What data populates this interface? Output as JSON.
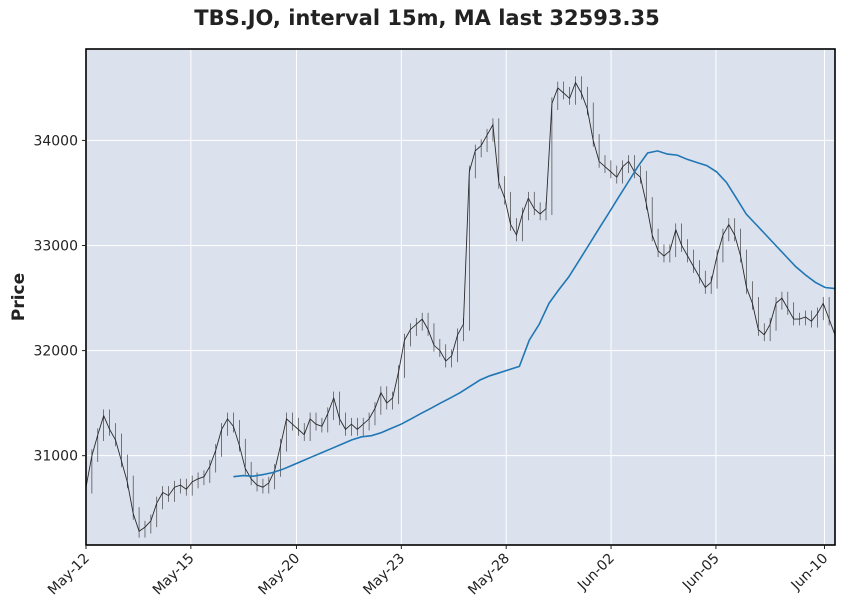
{
  "chart_data": {
    "type": "line",
    "title": "TBS.JO, interval 15m, MA last 32593.35",
    "xlabel": "",
    "ylabel": "Price",
    "x_tick_labels": [
      "May-12",
      "May-15",
      "May-20",
      "May-23",
      "May-28",
      "Jun-02",
      "Jun-05",
      "Jun-10"
    ],
    "y_ticks": [
      31000,
      32000,
      33000,
      34000
    ],
    "ylim": [
      30150,
      34870
    ],
    "grid": true,
    "colors": {
      "background": "#dce1ee",
      "grid": "#ffffff",
      "price": "#2a2a2a",
      "ma": "#1f77b4"
    },
    "series": [
      {
        "key": "price",
        "values": [
          30700,
          31000,
          31200,
          31380,
          31250,
          31150,
          30950,
          30750,
          30450,
          30280,
          30320,
          30380,
          30550,
          30650,
          30620,
          30700,
          30720,
          30680,
          30750,
          30780,
          30800,
          30900,
          31050,
          31250,
          31350,
          31280,
          31100,
          30880,
          30780,
          30720,
          30700,
          30740,
          30860,
          31100,
          31350,
          31300,
          31250,
          31200,
          31350,
          31300,
          31280,
          31400,
          31550,
          31350,
          31250,
          31300,
          31250,
          31300,
          31350,
          31450,
          31600,
          31500,
          31550,
          31800,
          32100,
          32200,
          32250,
          32300,
          32200,
          32050,
          32000,
          31900,
          31950,
          32150,
          32250,
          33700,
          33900,
          33950,
          34050,
          34150,
          33600,
          33450,
          33200,
          33100,
          33300,
          33450,
          33350,
          33300,
          33350,
          34350,
          34500,
          34450,
          34400,
          34550,
          34450,
          34300,
          34000,
          33800,
          33750,
          33700,
          33650,
          33750,
          33800,
          33700,
          33650,
          33400,
          33100,
          32950,
          32900,
          32950,
          33150,
          33000,
          32900,
          32800,
          32700,
          32600,
          32650,
          32900,
          33100,
          33200,
          33100,
          32900,
          32600,
          32450,
          32200,
          32150,
          32250,
          32450,
          32500,
          32400,
          32300,
          32300,
          32320,
          32280,
          32350,
          32450,
          32300,
          32150
        ]
      },
      {
        "key": "ma",
        "start_index": 25,
        "values": [
          30800,
          30810,
          30805,
          30820,
          30840,
          30870,
          30910,
          30950,
          30990,
          31030,
          31070,
          31110,
          31150,
          31180,
          31190,
          31220,
          31260,
          31300,
          31350,
          31400,
          31450,
          31500,
          31550,
          31600,
          31660,
          31720,
          31760,
          31790,
          31820,
          31850,
          32100,
          32250,
          32450,
          32580,
          32700,
          32850,
          33000,
          33150,
          33300,
          33450,
          33600,
          33750,
          33880,
          33900,
          33870,
          33860,
          33820,
          33790,
          33760,
          33700,
          33600,
          33450,
          33300,
          33200,
          33100,
          33000,
          32900,
          32800,
          32720,
          32650,
          32600,
          32590
        ]
      }
    ]
  }
}
